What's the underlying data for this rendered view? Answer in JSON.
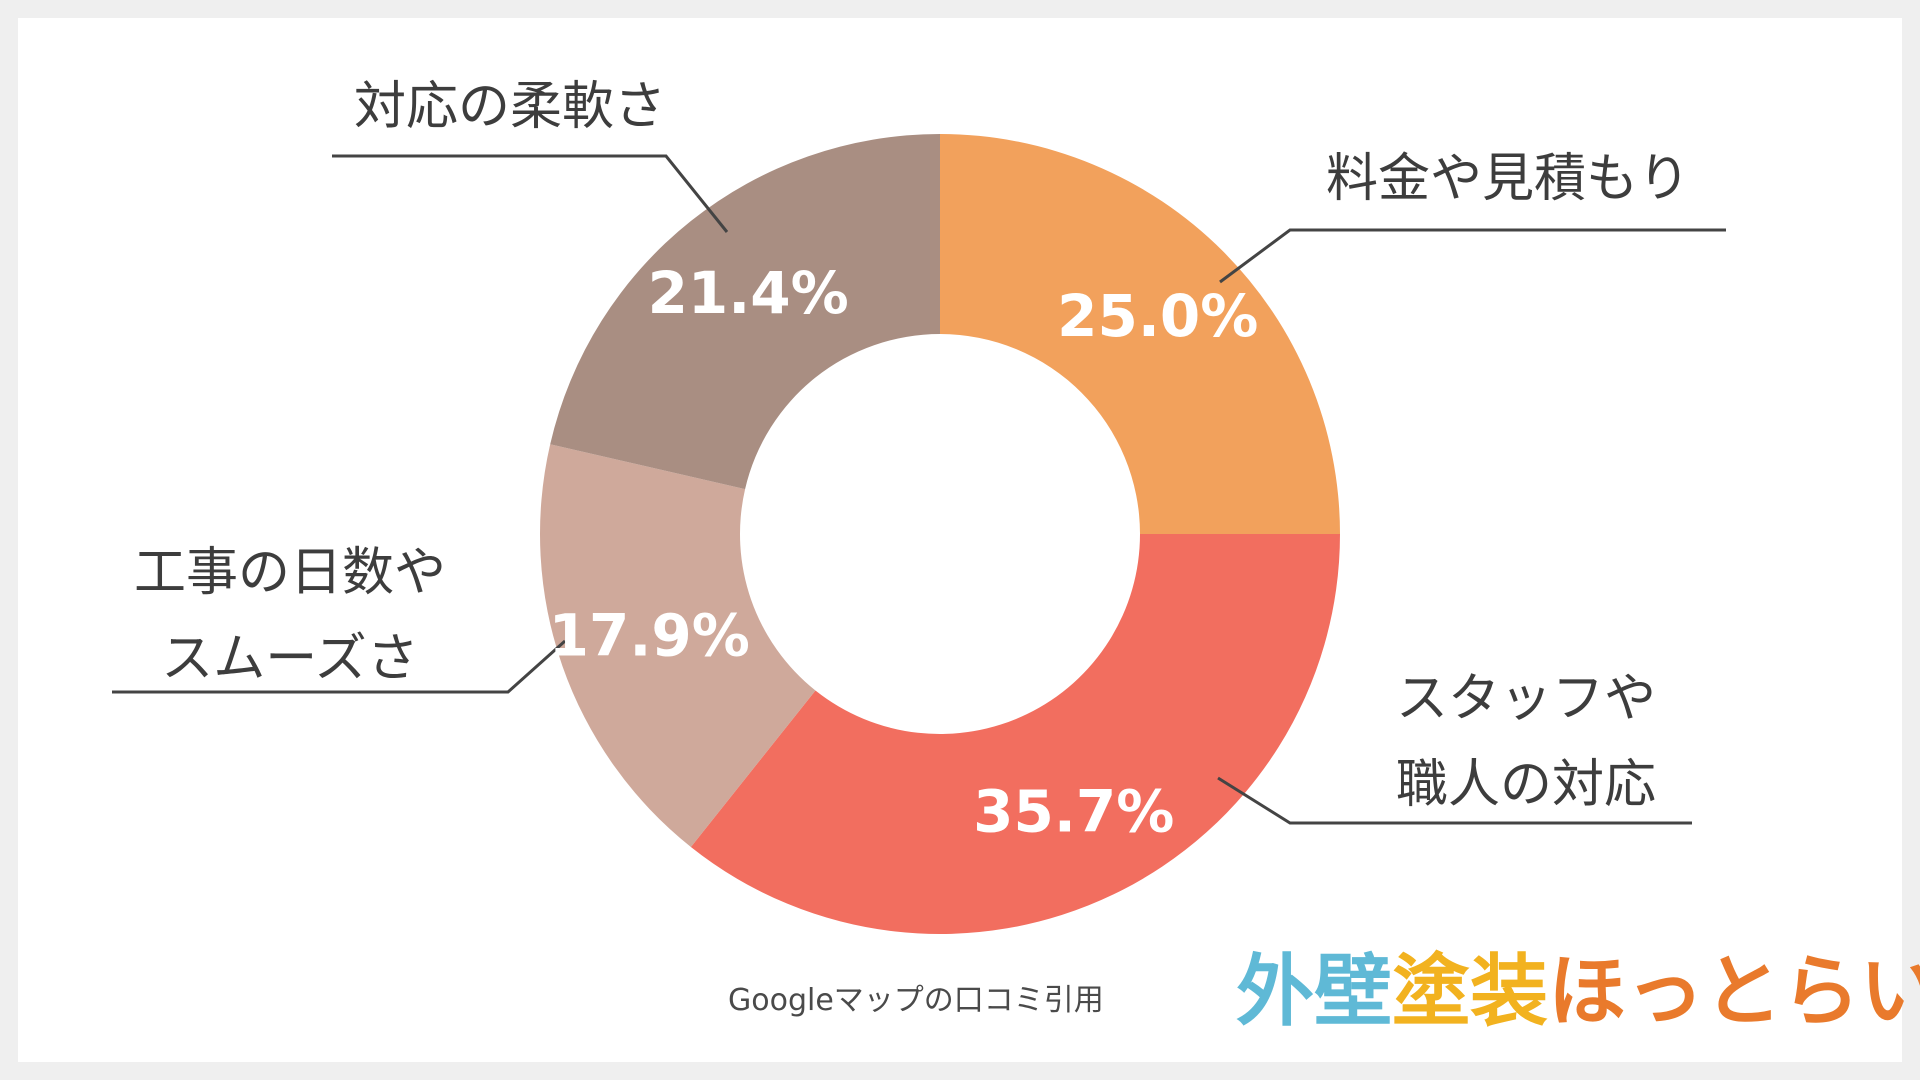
{
  "chart_data": {
    "type": "pie",
    "variant": "donut",
    "slices": [
      {
        "category": "料金や見積もり",
        "lines": [
          "料金や見積もり"
        ],
        "value": 25.0,
        "label": "25.0%",
        "color": "#f2a15c"
      },
      {
        "category": "スタッフや職人の対応",
        "lines": [
          "スタッフや",
          "職人の対応"
        ],
        "value": 35.7,
        "label": "35.7%",
        "color": "#f26e5f"
      },
      {
        "category": "工事の日数やスムーズさ",
        "lines": [
          "工事の日数や",
          "スムーズさ"
        ],
        "value": 17.9,
        "label": "17.9%",
        "color": "#cfa99b"
      },
      {
        "category": "対応の柔軟さ",
        "lines": [
          "対応の柔軟さ"
        ],
        "value": 21.4,
        "label": "21.4%",
        "color": "#a98e82"
      }
    ],
    "start": "12 o'clock",
    "direction": "clockwise"
  },
  "source_note": "Googleマップの口コミ引用",
  "logo": {
    "text": "外壁塗装ほっとらいん",
    "parts": [
      {
        "text": "外壁",
        "color": "#5fb9d6"
      },
      {
        "text": "塗装",
        "color": "#f2b21f"
      },
      {
        "text": "ほっとらいん",
        "color": "#e97a2c"
      }
    ]
  }
}
